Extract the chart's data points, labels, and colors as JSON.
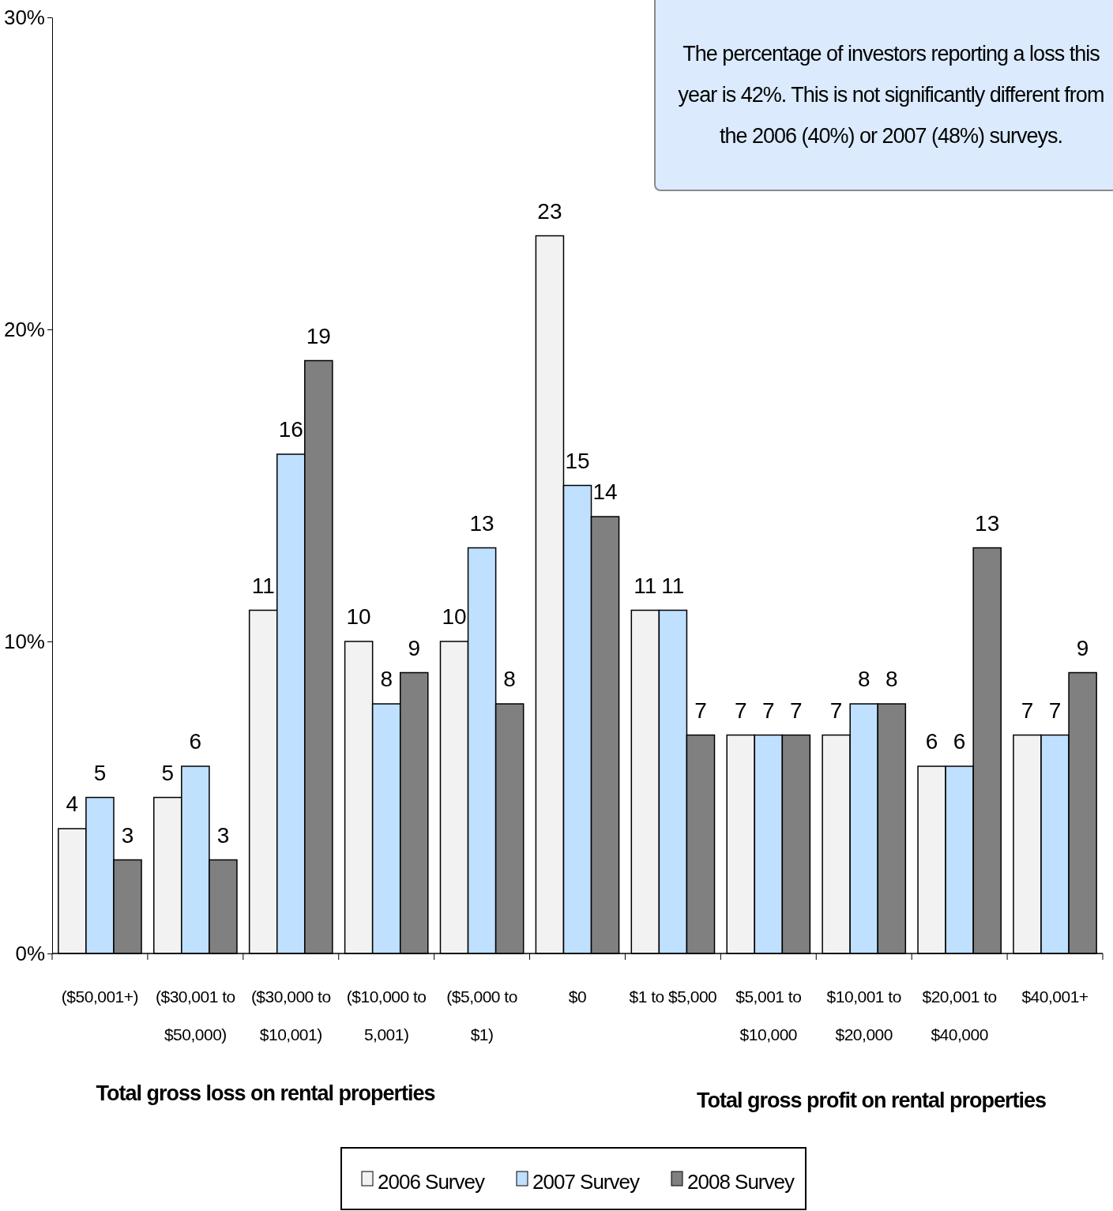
{
  "chart_data": {
    "type": "bar",
    "categories": [
      "($50,001+)",
      "($30,001 to $50,000)",
      "($30,000 to $10,001)",
      "($10,000 to 5,001)",
      "($5,000 to $1)",
      "$0",
      "$1 to $5,000",
      "$5,001 to $10,000",
      "$10,001 to $20,000",
      "$20,001 to $40,000",
      "$40,001+"
    ],
    "series": [
      {
        "name": "2006 Survey",
        "color": "#f2f2f2",
        "values": [
          4,
          5,
          11,
          10,
          10,
          23,
          11,
          7,
          7,
          6,
          7
        ]
      },
      {
        "name": "2007 Survey",
        "color": "#bfe0ff",
        "values": [
          5,
          6,
          16,
          8,
          13,
          15,
          11,
          7,
          8,
          6,
          7
        ]
      },
      {
        "name": "2008 Survey",
        "color": "#808080",
        "values": [
          3,
          3,
          19,
          9,
          8,
          14,
          7,
          7,
          8,
          13,
          9
        ]
      }
    ],
    "ylim": [
      0,
      30
    ],
    "yticks": [
      {
        "value": 0,
        "label": "0%"
      },
      {
        "value": 10,
        "label": "10%"
      },
      {
        "value": 20,
        "label": "20%"
      },
      {
        "value": 30,
        "label": "30%"
      }
    ],
    "data_labels": true,
    "legend": "bottom",
    "annotations": [
      "The percentage of investors reporting a loss this year is 42%. This is not significantly different from the 2006 (40%) or 2007 (48%) surveys.",
      "Total gross loss on rental properties",
      "Total gross profit on rental properties"
    ]
  }
}
